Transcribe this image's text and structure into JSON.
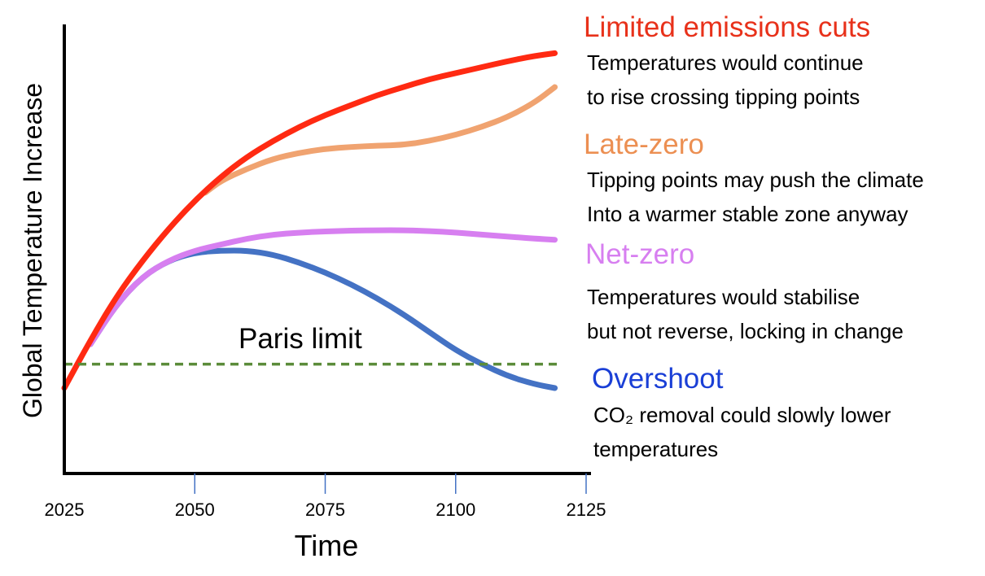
{
  "chart_data": {
    "type": "line",
    "xlabel": "Time",
    "ylabel": "Global Temperature Increase",
    "xlim": [
      2025,
      2125
    ],
    "ylim": [
      0,
      1
    ],
    "x_ticks": [
      2025,
      2050,
      2075,
      2100,
      2125
    ],
    "grid": false,
    "series": [
      {
        "name": "Limited emissions cuts",
        "color": "#ff2a12",
        "description": [
          "Temperatures would continue",
          "to rise crossing tipping points"
        ],
        "x": [
          2025,
          2030,
          2035,
          2040,
          2045,
          2050,
          2055,
          2060,
          2065,
          2070,
          2075,
          2080,
          2085,
          2090,
          2095,
          2100,
          2105,
          2110,
          2115,
          2119
        ],
        "y": [
          0.2,
          0.32,
          0.43,
          0.52,
          0.6,
          0.67,
          0.73,
          0.78,
          0.82,
          0.855,
          0.885,
          0.91,
          0.935,
          0.955,
          0.975,
          0.99,
          1.005,
          1.02,
          1.033,
          1.04
        ]
      },
      {
        "name": "Late-zero",
        "color": "#f0a370",
        "description": [
          "Tipping points may push the climate",
          "Into a warmer stable zone anyway"
        ],
        "x": [
          2052,
          2055,
          2060,
          2065,
          2070,
          2075,
          2080,
          2085,
          2090,
          2095,
          2100,
          2105,
          2110,
          2115,
          2119
        ],
        "y": [
          0.69,
          0.72,
          0.75,
          0.775,
          0.79,
          0.8,
          0.805,
          0.808,
          0.81,
          0.82,
          0.835,
          0.855,
          0.88,
          0.915,
          0.955
        ]
      },
      {
        "name": "Net-zero",
        "color": "#d77ff0",
        "description": [
          "Temperatures would stabilise",
          "but not reverse, locking in change"
        ],
        "x": [
          2030,
          2035,
          2040,
          2045,
          2050,
          2055,
          2060,
          2065,
          2070,
          2075,
          2080,
          2085,
          2090,
          2095,
          2100,
          2105,
          2110,
          2115,
          2119
        ],
        "y": [
          0.31,
          0.41,
          0.48,
          0.52,
          0.545,
          0.56,
          0.575,
          0.585,
          0.59,
          0.593,
          0.595,
          0.596,
          0.596,
          0.594,
          0.59,
          0.585,
          0.58,
          0.575,
          0.572
        ]
      },
      {
        "name": "Overshoot",
        "color": "#4472c4",
        "description": [
          "CO₂ removal could slowly lower",
          "temperatures"
        ],
        "x": [
          2030,
          2035,
          2040,
          2045,
          2050,
          2055,
          2060,
          2065,
          2070,
          2075,
          2080,
          2085,
          2090,
          2095,
          2100,
          2105,
          2110,
          2115,
          2119
        ],
        "y": [
          0.31,
          0.41,
          0.48,
          0.52,
          0.54,
          0.545,
          0.545,
          0.535,
          0.515,
          0.49,
          0.46,
          0.425,
          0.385,
          0.34,
          0.295,
          0.26,
          0.23,
          0.21,
          0.2
        ]
      }
    ],
    "reference_line": {
      "name": "Paris limit",
      "y": 0.26,
      "color": "#5b8c3a",
      "style": "dashed"
    }
  }
}
